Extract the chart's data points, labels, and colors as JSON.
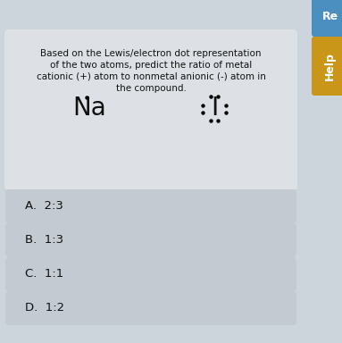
{
  "background_color": "#cdd5dc",
  "question_box_color": "#dde1e6",
  "answer_box_color": "#c4cad1",
  "question_text_lines": [
    "Based on the Lewis/electron dot representation",
    "of the two atoms, predict the ratio of metal",
    "cationic (+) atom to nonmetal anionic (-) atom in",
    "the compound."
  ],
  "na_label": "Na",
  "iodine_label": "I",
  "answers": [
    "A.  2:3",
    "B.  1:3",
    "C.  1:1",
    "D.  1:2"
  ],
  "help_button_color": "#c9961a",
  "reset_button_color": "#4a8fc0",
  "button_text_color": "#ffffff",
  "answer_text_color": "#111111",
  "question_text_color": "#111111",
  "fig_w": 3.83,
  "fig_h": 3.84,
  "dpi": 100
}
